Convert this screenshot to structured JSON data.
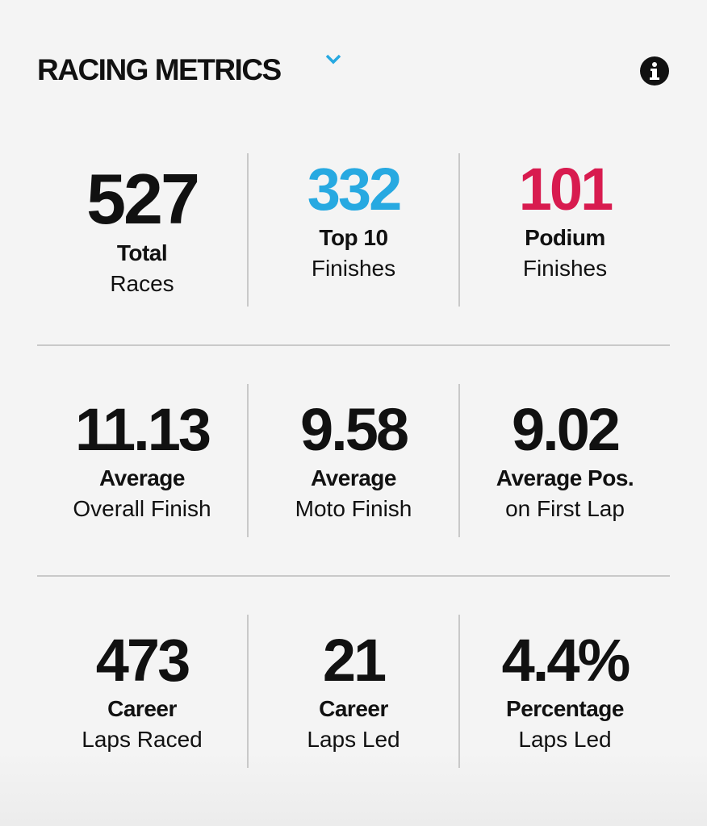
{
  "header": {
    "title": "RACING METRICS"
  },
  "rows": [
    [
      {
        "value": "527",
        "label": "Total",
        "sublabel": "Races",
        "color": "#111111"
      },
      {
        "value": "332",
        "label": "Top 10",
        "sublabel": "Finishes",
        "color": "#27a9e1"
      },
      {
        "value": "101",
        "label": "Podium",
        "sublabel": "Finishes",
        "color": "#d81b4f"
      }
    ],
    [
      {
        "value": "11.13",
        "label": "Average",
        "sublabel": "Overall Finish",
        "color": "#111111"
      },
      {
        "value": "9.58",
        "label": "Average",
        "sublabel": "Moto Finish",
        "color": "#111111"
      },
      {
        "value": "9.02",
        "label": "Average Pos.",
        "sublabel": "on First Lap",
        "color": "#111111"
      }
    ],
    [
      {
        "value": "473",
        "label": "Career",
        "sublabel": "Laps Raced",
        "color": "#111111"
      },
      {
        "value": "21",
        "label": "Career",
        "sublabel": "Laps Led",
        "color": "#111111"
      },
      {
        "value": "4.4%",
        "label": "Percentage",
        "sublabel": "Laps Led",
        "color": "#111111"
      }
    ]
  ]
}
